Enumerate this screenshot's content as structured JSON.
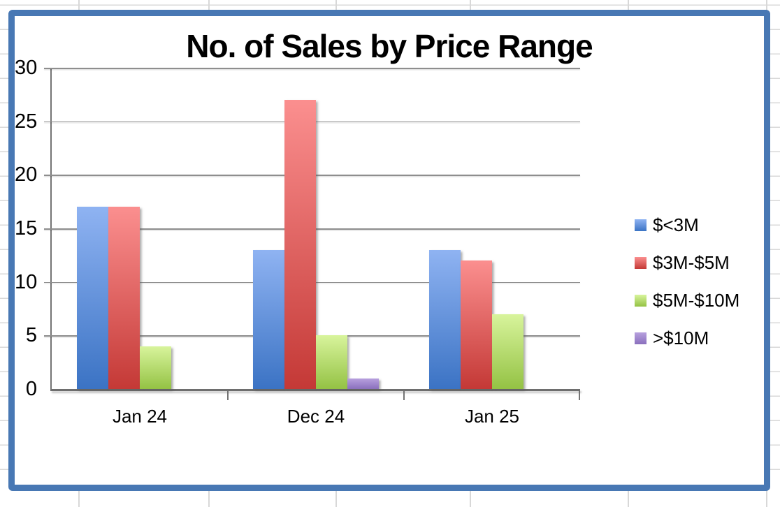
{
  "app_context": {
    "surface": "spreadsheet-embedded-chart",
    "frame_color": "#4878b4",
    "sheet_gridline_color": "#d8d8d8"
  },
  "chart_data": {
    "type": "bar",
    "title": "No. of Sales by Price Range",
    "categories": [
      "Jan 24",
      "Dec 24",
      "Jan 25"
    ],
    "series": [
      {
        "name": "$<3M",
        "values": [
          17,
          13,
          13
        ],
        "fill_top": "#8fb3f2",
        "fill_bottom": "#3b73c4"
      },
      {
        "name": "$3M-$5M",
        "values": [
          17,
          27,
          12
        ],
        "fill_top": "#fb8f8f",
        "fill_bottom": "#c43936"
      },
      {
        "name": "$5M-$10M",
        "values": [
          4,
          5,
          7
        ],
        "fill_top": "#d8f49c",
        "fill_bottom": "#94c244"
      },
      {
        "name": ">$10M",
        "values": [
          0,
          1,
          0
        ],
        "fill_top": "#b7a0de",
        "fill_bottom": "#8a70bd"
      }
    ],
    "xlabel": "",
    "ylabel": "",
    "ylim": [
      0,
      30
    ],
    "yticks": [
      0,
      5,
      10,
      15,
      20,
      25,
      30
    ],
    "grid": true,
    "gridline_color": "#8e8e8e",
    "legend_position": "right"
  }
}
